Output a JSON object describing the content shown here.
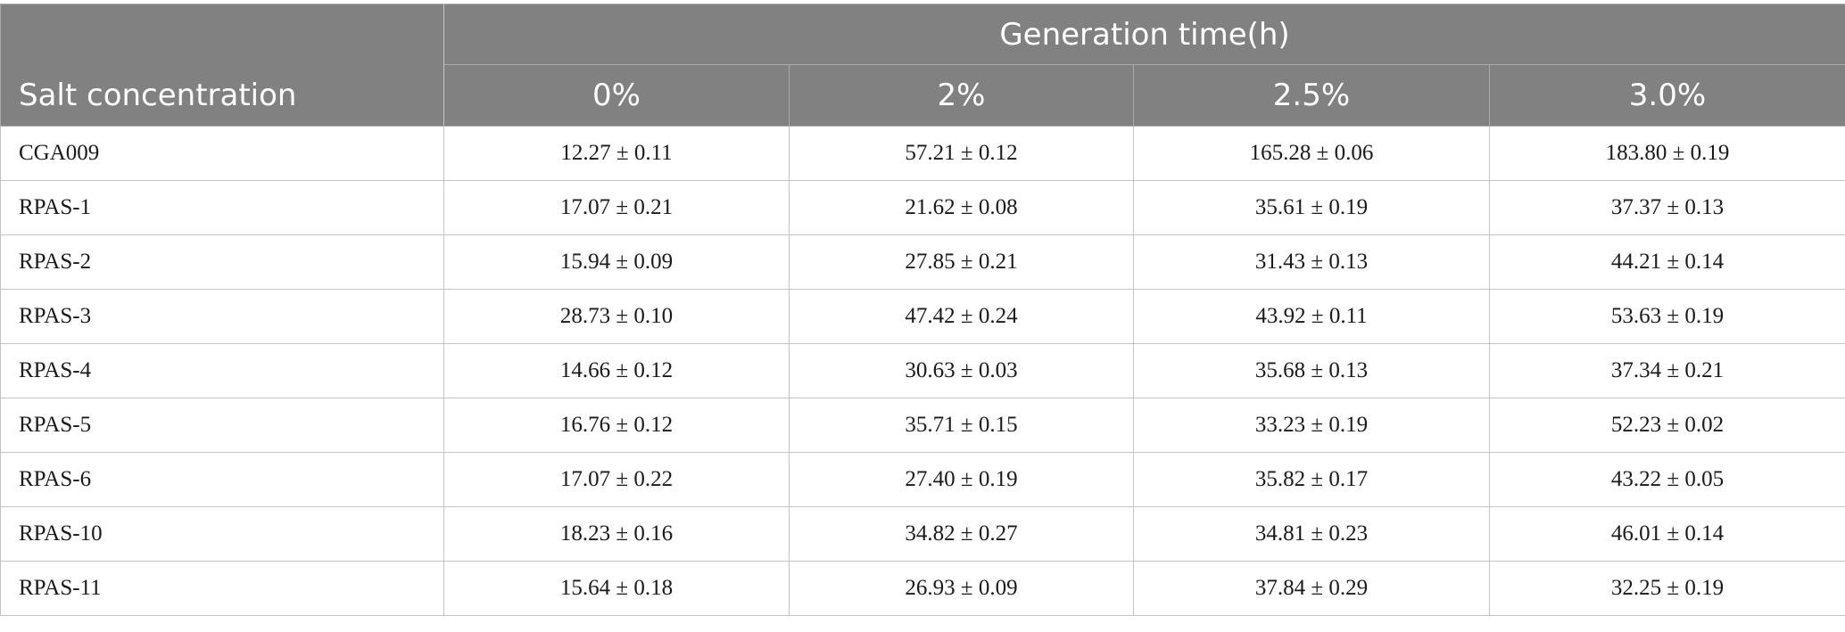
{
  "table": {
    "stub_header": "Salt concentration",
    "group_header": "Generation time(h)",
    "columns": [
      "0%",
      "2%",
      "2.5%",
      "3.0%"
    ],
    "rows": [
      {
        "name": "CGA009",
        "values": [
          "12.27 ± 0.11",
          "57.21 ± 0.12",
          "165.28 ± 0.06",
          "183.80 ± 0.19"
        ]
      },
      {
        "name": "RPAS-1",
        "values": [
          "17.07 ± 0.21",
          "21.62 ± 0.08",
          "35.61 ± 0.19",
          "37.37 ± 0.13"
        ]
      },
      {
        "name": "RPAS-2",
        "values": [
          "15.94 ± 0.09",
          "27.85 ± 0.21",
          "31.43 ± 0.13",
          "44.21 ± 0.14"
        ]
      },
      {
        "name": "RPAS-3",
        "values": [
          "28.73 ± 0.10",
          "47.42 ± 0.24",
          "43.92 ± 0.11",
          "53.63 ± 0.19"
        ]
      },
      {
        "name": "RPAS-4",
        "values": [
          "14.66 ± 0.12",
          "30.63 ± 0.03",
          "35.68 ± 0.13",
          "37.34 ± 0.21"
        ]
      },
      {
        "name": "RPAS-5",
        "values": [
          "16.76 ± 0.12",
          "35.71 ± 0.15",
          "33.23 ± 0.19",
          "52.23 ± 0.02"
        ]
      },
      {
        "name": "RPAS-6",
        "values": [
          "17.07 ± 0.22",
          "27.40 ± 0.19",
          "35.82 ± 0.17",
          "43.22 ± 0.05"
        ]
      },
      {
        "name": "RPAS-10",
        "values": [
          "18.23 ± 0.16",
          "34.82 ± 0.27",
          "34.81 ± 0.23",
          "46.01 ± 0.14"
        ]
      },
      {
        "name": "RPAS-11",
        "values": [
          "15.64 ± 0.18",
          "26.93 ± 0.09",
          "37.84 ± 0.29",
          "32.25 ± 0.19"
        ]
      }
    ]
  }
}
